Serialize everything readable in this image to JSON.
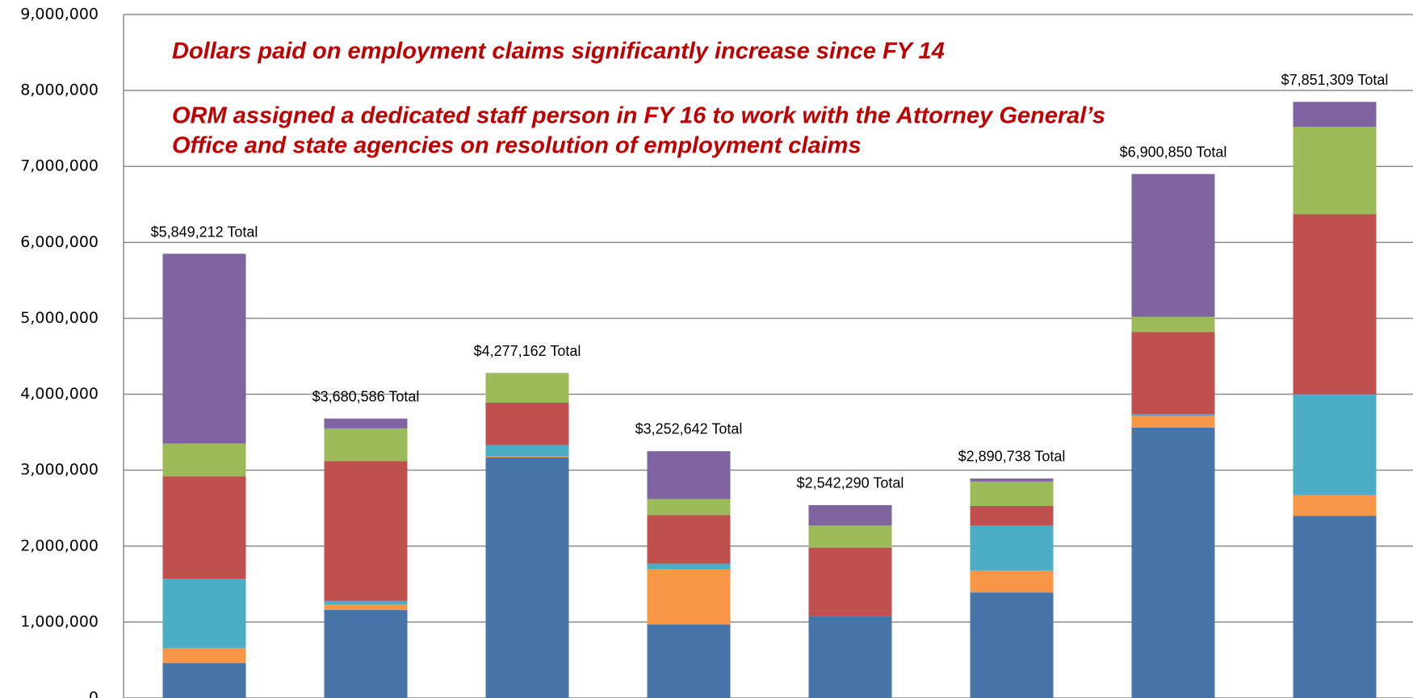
{
  "chart_data": {
    "type": "stacked_bar",
    "annotations": [
      "Dollars paid on employment claims significantly increase since FY 14",
      "ORM assigned a dedicated staff person in FY 16 to work with the Attorney General’s",
      "Office and state agencies on resolution of employment claims"
    ],
    "categories": [
      null,
      null,
      null,
      null,
      null,
      null,
      null,
      null
    ],
    "series": [
      {
        "color": "#4674a8",
        "values": [
          460000,
          1160000,
          3170000,
          970000,
          1080000,
          1390000,
          3560000,
          2400000
        ]
      },
      {
        "color": "#f79646",
        "values": [
          200000,
          70000,
          10000,
          730000,
          0,
          290000,
          150000,
          270000
        ]
      },
      {
        "color": "#4bacc6",
        "values": [
          910000,
          50000,
          150000,
          70000,
          0,
          590000,
          30000,
          1330000
        ]
      },
      {
        "color": "#c0504d",
        "values": [
          1350000,
          1840000,
          560000,
          640000,
          900000,
          260000,
          1080000,
          2370000
        ]
      },
      {
        "color": "#9bbb59",
        "values": [
          430000,
          430000,
          390000,
          210000,
          290000,
          320000,
          200000,
          1150000
        ]
      },
      {
        "color": "#8064a2",
        "values": [
          2500000,
          130000,
          0,
          630000,
          270000,
          40000,
          1880000,
          330000
        ]
      }
    ],
    "totals": [
      5849212,
      3680586,
      4277162,
      3252642,
      2542290,
      2890738,
      6900850,
      7851309
    ],
    "total_labels": [
      "$5,849,212 Total",
      "$3,680,586 Total",
      "$4,277,162 Total",
      "$3,252,642 Total",
      "$2,542,290 Total",
      "$2,890,738 Total",
      "$6,900,850 Total",
      "$7,851,309 Total"
    ],
    "ylim": [
      0,
      9000000
    ],
    "yticks": [
      0,
      {
        "value": 1000000,
        "label": "1,000,000"
      },
      {
        "value": 2000000,
        "label": "2,000,000"
      },
      {
        "value": 3000000,
        "label": "3,000,000"
      },
      {
        "value": 4000000,
        "label": "4,000,000"
      },
      {
        "value": 5000000,
        "label": "5,000,000"
      },
      {
        "value": 6000000,
        "label": "6,000,000"
      },
      {
        "value": 7000000,
        "label": "7,000,000"
      },
      {
        "value": 8000000,
        "label": "8,000,000"
      },
      {
        "value": 9000000,
        "label": "9,000,000"
      }
    ],
    "grid": true
  }
}
